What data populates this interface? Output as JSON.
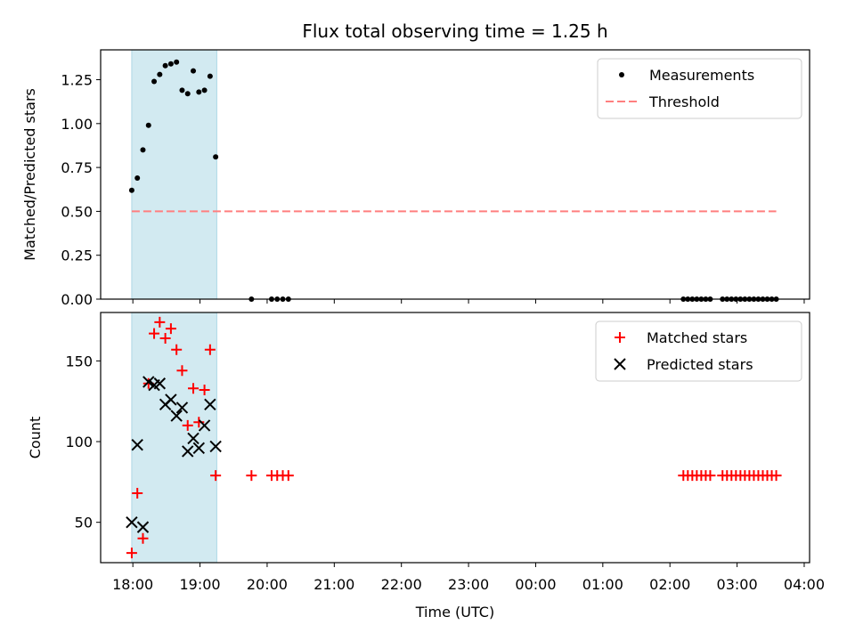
{
  "title": "Flux total observing time = 1.25 h",
  "colors": {
    "shade": "#add8e6",
    "threshold": "#ff7f7f",
    "matched": "#ff0000",
    "predicted": "#000000",
    "measurements": "#000000"
  },
  "chart_data": [
    {
      "type": "scatter",
      "ylabel": "Matched/Predicted stars",
      "ylim": [
        0,
        1.42
      ],
      "yticks": [
        "0.00",
        "0.25",
        "0.50",
        "0.75",
        "1.00",
        "1.25"
      ],
      "ytick_values": [
        0,
        0.25,
        0.5,
        0.75,
        1.0,
        1.25
      ],
      "x_unit": "hours since 18:00 UTC",
      "xlim": [
        -0.48,
        10.08
      ],
      "shaded_interval": [
        "17:59",
        "19:15"
      ],
      "legend_position": "top-right",
      "series": [
        {
          "name": "Measurements",
          "marker": "dot",
          "x": [
            "17:59",
            "18:04",
            "18:09",
            "18:14",
            "18:19",
            "18:24",
            "18:29",
            "18:34",
            "18:39",
            "18:44",
            "18:49",
            "18:54",
            "18:59",
            "19:04",
            "19:09",
            "19:14",
            "19:46",
            "20:04",
            "20:09",
            "20:14",
            "20:19",
            "02:12",
            "02:16",
            "02:20",
            "02:24",
            "02:28",
            "02:32",
            "02:36",
            "02:47",
            "02:51",
            "02:55",
            "02:59",
            "03:03",
            "03:07",
            "03:11",
            "03:15",
            "03:19",
            "03:23",
            "03:27",
            "03:31",
            "03:35"
          ],
          "y": [
            0.62,
            0.69,
            0.85,
            0.99,
            1.24,
            1.28,
            1.33,
            1.34,
            1.35,
            1.19,
            1.17,
            1.3,
            1.18,
            1.19,
            1.27,
            0.81,
            0,
            0,
            0,
            0,
            0,
            0,
            0,
            0,
            0,
            0,
            0,
            0,
            0,
            0,
            0,
            0,
            0,
            0,
            0,
            0,
            0,
            0,
            0,
            0,
            0
          ]
        },
        {
          "name": "Threshold",
          "style": "dashed",
          "x": [
            "17:59",
            "03:35"
          ],
          "y": [
            0.5,
            0.5
          ]
        }
      ]
    },
    {
      "type": "scatter",
      "ylabel": "Count",
      "xlabel": "Time (UTC)",
      "ylim": [
        25,
        180
      ],
      "yticks": [
        "50",
        "100",
        "150"
      ],
      "ytick_values": [
        50,
        100,
        150
      ],
      "xticks": [
        "18:00",
        "19:00",
        "20:00",
        "21:00",
        "22:00",
        "23:00",
        "00:00",
        "01:00",
        "02:00",
        "03:00",
        "04:00"
      ],
      "xtick_values": [
        0,
        1,
        2,
        3,
        4,
        5,
        6,
        7,
        8,
        9,
        10
      ],
      "legend_position": "top-right",
      "series": [
        {
          "name": "Matched stars",
          "marker": "plus",
          "x": [
            "17:59",
            "18:04",
            "18:09",
            "18:14",
            "18:19",
            "18:24",
            "18:29",
            "18:34",
            "18:39",
            "18:44",
            "18:49",
            "18:54",
            "18:59",
            "19:04",
            "19:09",
            "19:14",
            "19:46",
            "20:04",
            "20:09",
            "20:14",
            "20:19",
            "02:12",
            "02:16",
            "02:20",
            "02:24",
            "02:28",
            "02:32",
            "02:36",
            "02:47",
            "02:51",
            "02:55",
            "02:59",
            "03:03",
            "03:07",
            "03:11",
            "03:15",
            "03:19",
            "03:23",
            "03:27",
            "03:31",
            "03:35"
          ],
          "y": [
            31,
            68,
            40,
            136,
            167,
            174,
            164,
            170,
            157,
            144,
            110,
            133,
            112,
            132,
            157,
            79,
            79,
            79,
            79,
            79,
            79,
            79,
            79,
            79,
            79,
            79,
            79,
            79,
            79,
            79,
            79,
            79,
            79,
            79,
            79,
            79,
            79,
            79,
            79,
            79,
            79
          ]
        },
        {
          "name": "Predicted stars",
          "marker": "x",
          "x": [
            "17:59",
            "18:04",
            "18:09",
            "18:14",
            "18:19",
            "18:24",
            "18:29",
            "18:34",
            "18:39",
            "18:44",
            "18:49",
            "18:54",
            "18:59",
            "19:04",
            "19:09",
            "19:14"
          ],
          "y": [
            50,
            98,
            47,
            137,
            135,
            136,
            123,
            126,
            116,
            121,
            94,
            102,
            96,
            110,
            123,
            97
          ]
        }
      ]
    }
  ]
}
